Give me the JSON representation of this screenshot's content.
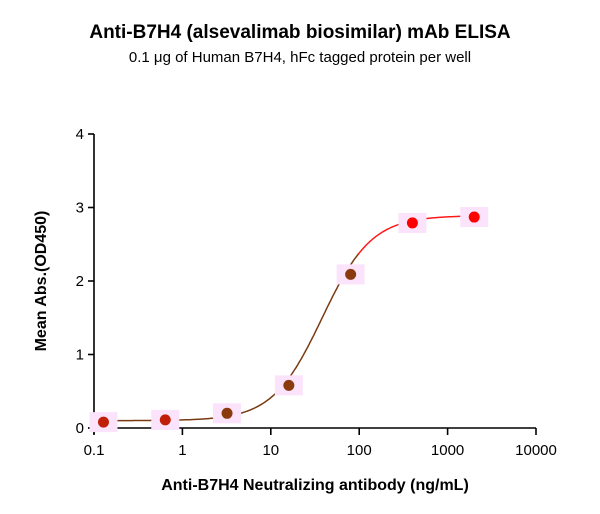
{
  "header": {
    "title": "Anti-B7H4 (alsevalimab biosimilar) mAb ELISA",
    "subtitle": "0.1 μg of Human B7H4, hFc tagged protein per well"
  },
  "chart_data": {
    "type": "scatter",
    "title": "Anti-B7H4 (alsevalimab biosimilar) mAb ELISA",
    "subtitle": "0.1 μg of Human B7H4, hFc tagged protein per well",
    "xlabel": "Anti-B7H4 Neutralizing antibody (ng/mL)",
    "ylabel": "Mean Abs.(OD450)",
    "xscale": "log",
    "xlim": [
      0.1,
      10000
    ],
    "ylim": [
      0,
      4
    ],
    "xticks": [
      "0.1",
      "1",
      "10",
      "100",
      "1000",
      "10000"
    ],
    "yticks": [
      "0",
      "1",
      "2",
      "3",
      "4"
    ],
    "grid": false,
    "legend": null,
    "fit": "4-parameter logistic curve",
    "series": [
      {
        "name": "Anti-B7H4 (alsevalimab biosimilar)",
        "x": [
          0.128,
          0.64,
          3.2,
          16,
          80,
          400,
          2000
        ],
        "y": [
          0.08,
          0.11,
          0.2,
          0.58,
          2.09,
          2.79,
          2.87
        ],
        "color": "#ff0000"
      }
    ]
  }
}
